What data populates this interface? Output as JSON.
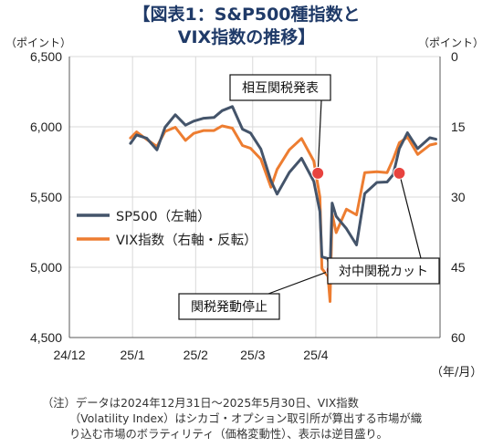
{
  "title_line1": "【図表1：S&P500種指数と",
  "title_line2": "VIX指数の推移】",
  "chart_data": {
    "type": "line",
    "left_unit": "（ポイント）",
    "right_unit": "（ポイント）",
    "x_unit": "（年/月）",
    "x_tick_labels": [
      "24/12",
      "25/1",
      "25/2",
      "25/3",
      "25/4"
    ],
    "left_axis": {
      "ylim": [
        4500,
        6500
      ],
      "ticks": [
        "6,500",
        "6,000",
        "5,500",
        "5,000",
        "4,500"
      ]
    },
    "right_axis": {
      "ylim": [
        0,
        60
      ],
      "reversed": true,
      "ticks": [
        "0",
        "15",
        "30",
        "45",
        "60"
      ]
    },
    "legend_placement": "left-center",
    "colors": {
      "sp500": "#44546a",
      "vix": "#ed7d31",
      "event": "#e8433f"
    },
    "series": [
      {
        "name": "SP500（左軸）",
        "axis": "left",
        "dates": [
          "2024-12-31",
          "2025-01-03",
          "2025-01-08",
          "2025-01-13",
          "2025-01-17",
          "2025-01-22",
          "2025-01-27",
          "2025-01-31",
          "2025-02-05",
          "2025-02-10",
          "2025-02-14",
          "2025-02-19",
          "2025-02-24",
          "2025-02-28",
          "2025-03-05",
          "2025-03-10",
          "2025-03-13",
          "2025-03-19",
          "2025-03-25",
          "2025-03-31",
          "2025-04-03",
          "2025-04-04",
          "2025-04-07",
          "2025-04-08",
          "2025-04-09",
          "2025-04-11",
          "2025-04-16",
          "2025-04-21",
          "2025-04-25",
          "2025-05-01",
          "2025-05-06",
          "2025-05-09",
          "2025-05-12",
          "2025-05-16",
          "2025-05-21",
          "2025-05-27",
          "2025-05-30"
        ],
        "values": [
          5882,
          5942,
          5918,
          5836,
          5997,
          6086,
          6012,
          6040,
          6061,
          6066,
          6115,
          6144,
          5983,
          5955,
          5842,
          5615,
          5521,
          5675,
          5776,
          5612,
          5397,
          5074,
          5062,
          4983,
          5457,
          5363,
          5275,
          5159,
          5525,
          5604,
          5607,
          5660,
          5845,
          5958,
          5845,
          5922,
          5912
        ]
      },
      {
        "name": "VIX指数（右軸・反転）",
        "axis": "right",
        "dates": [
          "2024-12-31",
          "2025-01-03",
          "2025-01-08",
          "2025-01-13",
          "2025-01-17",
          "2025-01-22",
          "2025-01-27",
          "2025-01-31",
          "2025-02-05",
          "2025-02-10",
          "2025-02-14",
          "2025-02-19",
          "2025-02-24",
          "2025-02-28",
          "2025-03-05",
          "2025-03-10",
          "2025-03-13",
          "2025-03-19",
          "2025-03-25",
          "2025-03-31",
          "2025-04-03",
          "2025-04-04",
          "2025-04-07",
          "2025-04-08",
          "2025-04-09",
          "2025-04-11",
          "2025-04-16",
          "2025-04-21",
          "2025-04-25",
          "2025-05-01",
          "2025-05-06",
          "2025-05-09",
          "2025-05-12",
          "2025-05-16",
          "2025-05-21",
          "2025-05-27",
          "2025-05-30"
        ],
        "values": [
          17.4,
          16.1,
          17.7,
          19.2,
          16.0,
          15.1,
          17.9,
          16.4,
          15.8,
          15.8,
          14.8,
          15.3,
          19.0,
          19.6,
          21.9,
          27.9,
          24.1,
          19.9,
          17.5,
          22.3,
          30.0,
          45.3,
          46.9,
          52.3,
          33.6,
          37.6,
          32.6,
          33.8,
          24.8,
          24.6,
          24.8,
          21.9,
          18.4,
          17.2,
          20.9,
          18.9,
          18.6
        ]
      }
    ],
    "annotations": [
      {
        "label": "相互関税発表",
        "date": "2025-04-02",
        "value": 5670,
        "axis": "left",
        "callout": "above"
      },
      {
        "label": "関税発動停止",
        "date": "2025-04-09",
        "value": 4980,
        "axis": "left",
        "callout": "below"
      },
      {
        "label": "対中関税カット",
        "date": "2025-05-12",
        "value": 5670,
        "axis": "left",
        "callout": "below-right"
      }
    ]
  },
  "note": {
    "line1": "（注）データは2024年12月31日～2025年5月30日、VIX指数",
    "line2": "（Volatility Index）はシカゴ・オプション取引所が算出する市場が織",
    "line3": "り込む市場のボラティリティ（価格変動性）、表示は逆目盛り。"
  }
}
